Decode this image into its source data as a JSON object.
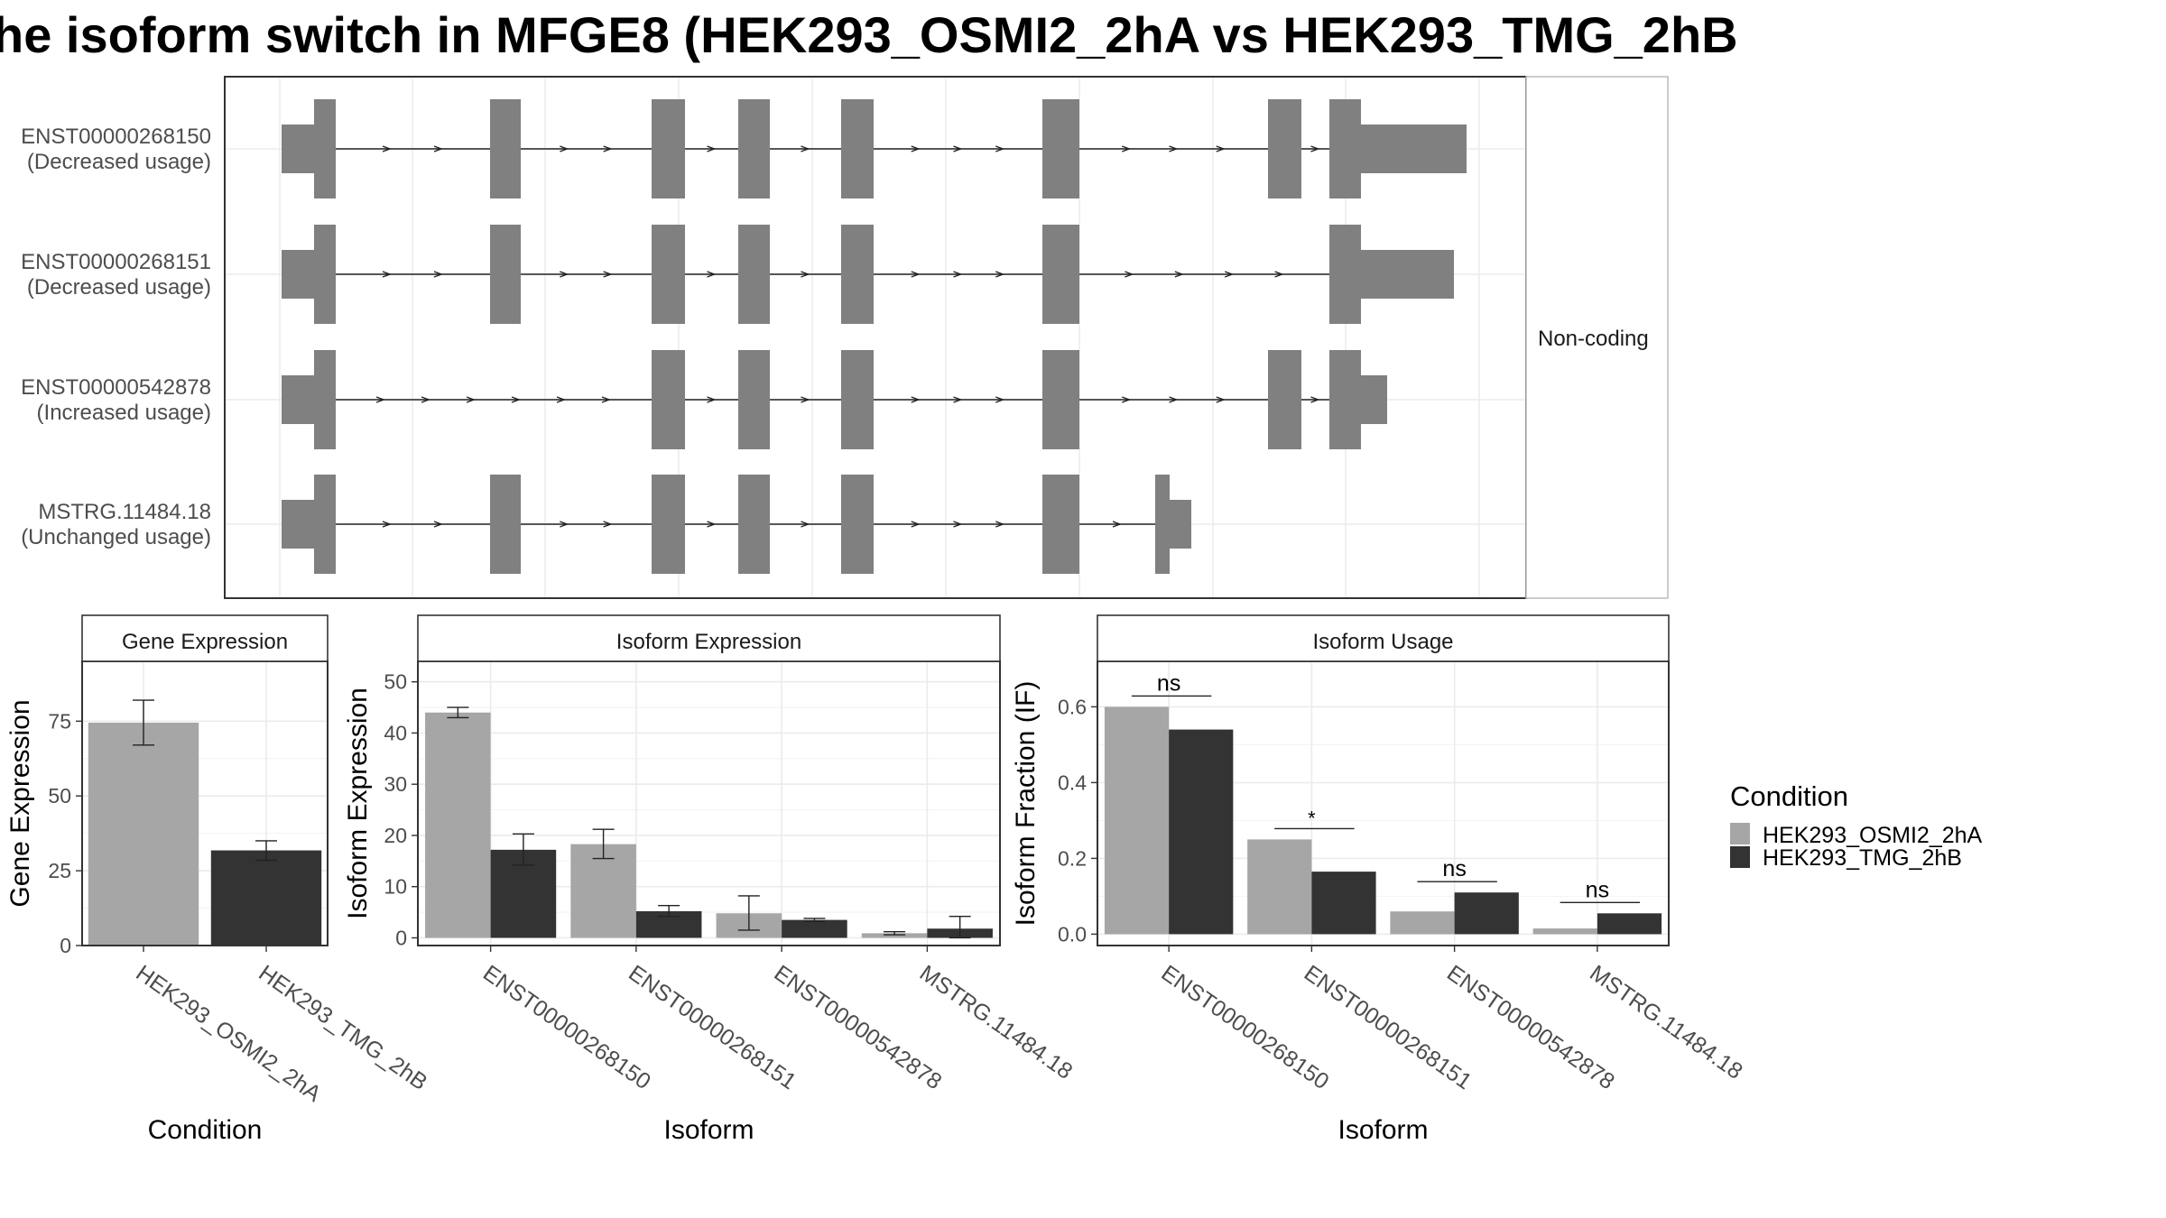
{
  "title": "he isoform switch in MFGE8 (HEK293_OSMI2_2hA vs HEK293_TMG_2hB",
  "structure": {
    "strip_label": "Non-coding",
    "isoforms": [
      {
        "id": "ENST00000268150",
        "usage": "(Decreased usage)"
      },
      {
        "id": "ENST00000268151",
        "usage": "(Decreased usage)"
      },
      {
        "id": "ENST00000542878",
        "usage": "(Increased usage)"
      },
      {
        "id": "MSTRG.11484.18",
        "usage": "(Unchanged usage)"
      }
    ]
  },
  "legend": {
    "title": "Condition",
    "items": [
      "HEK293_OSMI2_2hA",
      "HEK293_TMG_2hB"
    ]
  },
  "colors": {
    "cond_a": "#a6a6a6",
    "cond_b": "#333333",
    "exon": "#808080",
    "grid": "#ebebeb",
    "panel_border": "#333333"
  },
  "chart_data": [
    {
      "type": "bar",
      "title": "Gene Expression",
      "xlabel": "Condition",
      "ylabel": "Gene Expression",
      "categories": [
        "HEK293_OSMI2_2hA",
        "HEK293_TMG_2hB"
      ],
      "ylim": [
        0,
        95
      ],
      "yticks": [
        0,
        25,
        50,
        75
      ],
      "values": [
        74.5,
        31.8
      ],
      "errors": [
        [
          67,
          82
        ],
        [
          28.5,
          35
        ]
      ]
    },
    {
      "type": "bar",
      "title": "Isoform Expression",
      "xlabel": "Isoform",
      "ylabel": "Isoform Expression",
      "categories": [
        "ENST00000268150",
        "ENST00000268151",
        "ENST00000542878",
        "MSTRG.11484.18"
      ],
      "ylim": [
        -1.5,
        54
      ],
      "yticks": [
        0,
        10,
        20,
        30,
        40,
        50
      ],
      "series": [
        {
          "name": "HEK293_OSMI2_2hA",
          "values": [
            44,
            18.3,
            4.8,
            0.9
          ],
          "errors": [
            [
              43,
              45
            ],
            [
              15.5,
              21.2
            ],
            [
              1.5,
              8.2
            ],
            [
              0.6,
              1.2
            ]
          ]
        },
        {
          "name": "HEK293_TMG_2hB",
          "values": [
            17.2,
            5.2,
            3.5,
            1.8
          ],
          "errors": [
            [
              14.2,
              20.3
            ],
            [
              4.2,
              6.3
            ],
            [
              3.2,
              3.8
            ],
            [
              0,
              4.2
            ]
          ]
        }
      ]
    },
    {
      "type": "bar",
      "title": "Isoform Usage",
      "xlabel": "Isoform",
      "ylabel": "Isoform Fraction (IF)",
      "categories": [
        "ENST00000268150",
        "ENST00000268151",
        "ENST00000542878",
        "MSTRG.11484.18"
      ],
      "ylim": [
        -0.03,
        0.72
      ],
      "yticks": [
        0.0,
        0.2,
        0.4,
        0.6
      ],
      "ytick_labels": [
        "0.0",
        "0.2",
        "0.4",
        "0.6"
      ],
      "series": [
        {
          "name": "HEK293_OSMI2_2hA",
          "values": [
            0.6,
            0.25,
            0.06,
            0.015
          ]
        },
        {
          "name": "HEK293_TMG_2hB",
          "values": [
            0.54,
            0.165,
            0.11,
            0.055
          ]
        }
      ],
      "significance": [
        "ns",
        "*",
        "ns",
        "ns"
      ]
    }
  ]
}
